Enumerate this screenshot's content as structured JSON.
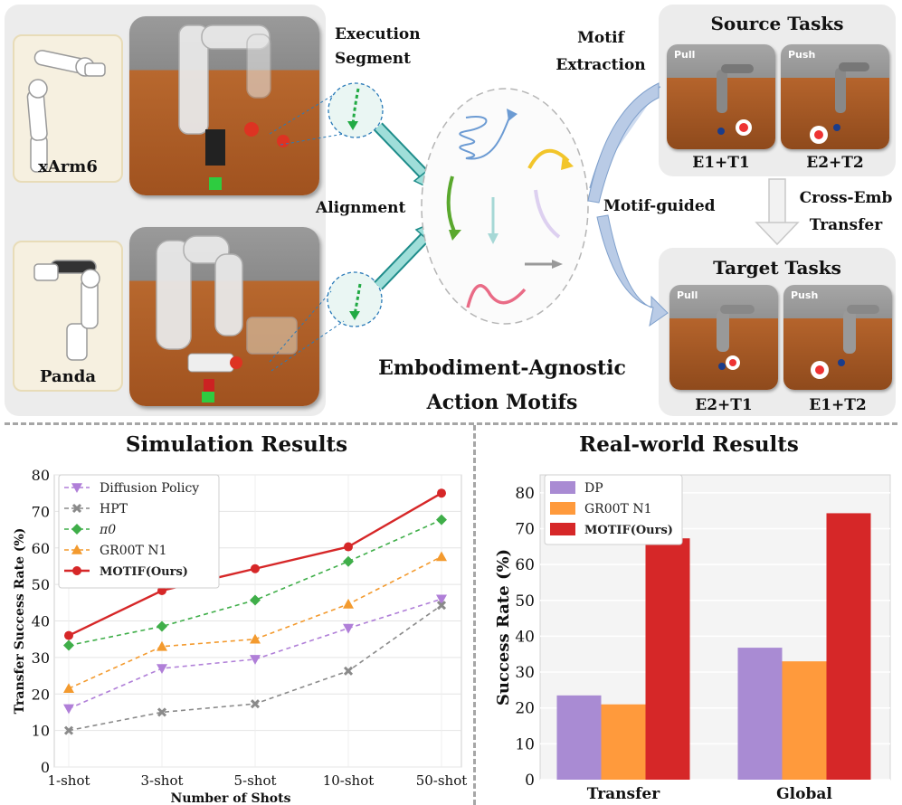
{
  "top": {
    "execution_segment": "Execution\nSegment",
    "alignment": "Alignment",
    "motif_extraction": "Motif\nExtraction",
    "motif_guided": "Motif-guided",
    "motifs_caption": "Embodiment-Agnostic\nAction Motifs",
    "cross_emb": "Cross-Emb\nTransfer",
    "robots": [
      {
        "name": "xArm6"
      },
      {
        "name": "Panda"
      }
    ],
    "source": {
      "title": "Source Tasks",
      "tiles": [
        {
          "label": "Pull",
          "caption": "E1+T1"
        },
        {
          "label": "Push",
          "caption": "E2+T2"
        }
      ]
    },
    "target": {
      "title": "Target Tasks",
      "tiles": [
        {
          "label": "Pull",
          "caption": "E2+T1"
        },
        {
          "label": "Push",
          "caption": "E1+T2"
        }
      ]
    }
  },
  "chart_data": [
    {
      "type": "line",
      "title": "Simulation Results",
      "xlabel": "Number of Shots",
      "ylabel": "Transfer Success Rate (%)",
      "categories": [
        "1-shot",
        "3-shot",
        "5-shot",
        "10-shot",
        "50-shot"
      ],
      "ylim": [
        0,
        80
      ],
      "yticks": [
        0,
        10,
        20,
        30,
        40,
        50,
        60,
        70,
        80
      ],
      "series": [
        {
          "name": "Diffusion Policy",
          "color": "#b07fd8",
          "marker": "triangle-down",
          "dash": true,
          "values": [
            16,
            27,
            29.5,
            38,
            46
          ]
        },
        {
          "name": "HPT",
          "color": "#8a8a8a",
          "marker": "x",
          "dash": true,
          "values": [
            10,
            15,
            17.3,
            26.3,
            44.3
          ]
        },
        {
          "name": "π0",
          "color": "#3fae49",
          "marker": "diamond",
          "dash": true,
          "values": [
            33.3,
            38.5,
            45.7,
            56.3,
            67.7
          ]
        },
        {
          "name": "GR00T N1",
          "color": "#f39a2e",
          "marker": "triangle-up",
          "dash": true,
          "values": [
            21.5,
            33,
            35,
            44.6,
            57.6
          ]
        },
        {
          "name": "MOTIF(Ours)",
          "color": "#d62728",
          "marker": "circle",
          "dash": false,
          "values": [
            36,
            48.3,
            54.3,
            60.3,
            75
          ]
        }
      ]
    },
    {
      "type": "bar",
      "title": "Real-world Results",
      "xlabel": "",
      "ylabel": "Success Rate (%)",
      "categories": [
        "Transfer",
        "Global"
      ],
      "ylim": [
        0,
        85
      ],
      "yticks": [
        0,
        10,
        20,
        30,
        40,
        50,
        60,
        70,
        80
      ],
      "series": [
        {
          "name": "DP",
          "color": "#a98bd3",
          "values": [
            23.5,
            36.8
          ]
        },
        {
          "name": "GR00T N1",
          "color": "#ff9a3c",
          "values": [
            21,
            33
          ]
        },
        {
          "name": "MOTIF(Ours)",
          "color": "#d62728",
          "values": [
            67.3,
            74.3
          ]
        }
      ]
    }
  ]
}
